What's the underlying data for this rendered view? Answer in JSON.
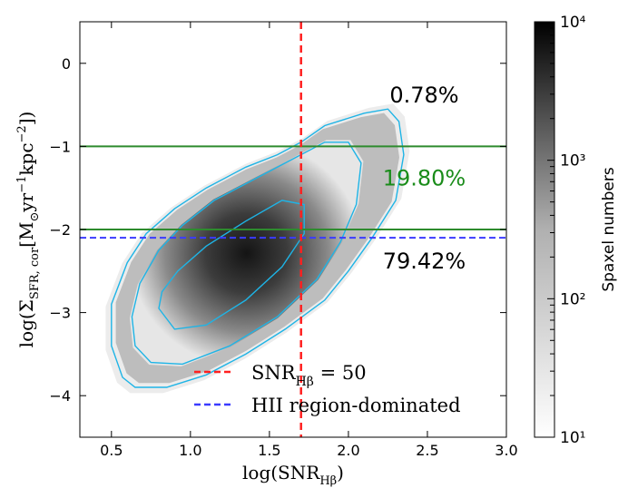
{
  "chart_data": {
    "type": "heatmap",
    "xlabel": "log(SNR_Hβ)",
    "ylabel": "log(Σ_SFR,cor [M⊙ yr⁻¹ kpc⁻²])",
    "xlim": [
      0.3,
      3.0
    ],
    "ylim": [
      -4.5,
      0.5
    ],
    "x_ticks": [
      0.5,
      1.0,
      1.5,
      2.0,
      2.5,
      3.0
    ],
    "y_ticks": [
      0,
      -1,
      -2,
      -3,
      -4
    ],
    "x_tick_labels": [
      "0.5",
      "1.0",
      "1.5",
      "2.0",
      "2.5",
      "3.0"
    ],
    "y_tick_labels": [
      "0",
      "−1",
      "−2",
      "−3",
      "−4"
    ],
    "colorbar": {
      "label": "Spaxel numbers",
      "scale": "log",
      "range": [
        10,
        10000
      ],
      "colormap": "Greys",
      "tick_labels": [
        "10¹",
        "10²",
        "10³",
        "10⁴"
      ]
    },
    "contour_color": "#1eb4e6",
    "contours": [
      {
        "level": "outer",
        "points": [
          [
            0.57,
            -3.78
          ],
          [
            0.65,
            -3.9
          ],
          [
            0.85,
            -3.9
          ],
          [
            1.1,
            -3.75
          ],
          [
            1.35,
            -3.5
          ],
          [
            1.6,
            -3.2
          ],
          [
            1.85,
            -2.85
          ],
          [
            2.0,
            -2.5
          ],
          [
            2.15,
            -2.1
          ],
          [
            2.3,
            -1.65
          ],
          [
            2.35,
            -1.1
          ],
          [
            2.32,
            -0.7
          ],
          [
            2.25,
            -0.55
          ],
          [
            2.1,
            -0.6
          ],
          [
            1.85,
            -0.75
          ],
          [
            1.7,
            -0.95
          ],
          [
            1.55,
            -1.1
          ],
          [
            1.35,
            -1.25
          ],
          [
            1.1,
            -1.5
          ],
          [
            0.9,
            -1.75
          ],
          [
            0.72,
            -2.05
          ],
          [
            0.6,
            -2.4
          ],
          [
            0.5,
            -2.9
          ],
          [
            0.5,
            -3.4
          ]
        ]
      },
      {
        "level": "middle",
        "points": [
          [
            0.65,
            -3.4
          ],
          [
            0.75,
            -3.6
          ],
          [
            0.95,
            -3.62
          ],
          [
            1.25,
            -3.4
          ],
          [
            1.55,
            -3.05
          ],
          [
            1.8,
            -2.6
          ],
          [
            1.95,
            -2.15
          ],
          [
            2.05,
            -1.7
          ],
          [
            2.08,
            -1.2
          ],
          [
            2.0,
            -0.95
          ],
          [
            1.85,
            -0.95
          ],
          [
            1.65,
            -1.15
          ],
          [
            1.4,
            -1.4
          ],
          [
            1.15,
            -1.65
          ],
          [
            0.95,
            -1.95
          ],
          [
            0.8,
            -2.25
          ],
          [
            0.68,
            -2.65
          ],
          [
            0.63,
            -3.05
          ]
        ]
      },
      {
        "level": "inner",
        "points": [
          [
            0.8,
            -2.95
          ],
          [
            0.9,
            -3.2
          ],
          [
            1.1,
            -3.15
          ],
          [
            1.35,
            -2.85
          ],
          [
            1.58,
            -2.45
          ],
          [
            1.72,
            -2.05
          ],
          [
            1.72,
            -1.7
          ],
          [
            1.58,
            -1.65
          ],
          [
            1.35,
            -1.9
          ],
          [
            1.1,
            -2.2
          ],
          [
            0.92,
            -2.5
          ],
          [
            0.82,
            -2.75
          ]
        ]
      }
    ],
    "hlines": [
      {
        "y": -1,
        "color": "#2e8b2e",
        "style": "solid"
      },
      {
        "y": -2,
        "color": "#2e8b2e",
        "style": "solid"
      },
      {
        "y": -2.1,
        "color": "#3b3bff",
        "style": "dashed"
      }
    ],
    "vlines": [
      {
        "x": 1.7,
        "color": "#ff2020",
        "style": "dashed"
      }
    ],
    "annotations": [
      {
        "text": "0.78%",
        "x": 2.48,
        "y": -0.47,
        "color": "#000000"
      },
      {
        "text": "19.80%",
        "x": 2.48,
        "y": -1.47,
        "color": "#1a8c1a"
      },
      {
        "text": "79.42%",
        "x": 2.48,
        "y": -2.47,
        "color": "#000000"
      }
    ],
    "legend": {
      "position": "bottom-center",
      "entries": [
        {
          "label": "SNR_Hβ = 50",
          "color": "#ff2020",
          "style": "dashed"
        },
        {
          "label": "HII region-dominated",
          "color": "#3b3bff",
          "style": "dashed"
        }
      ]
    }
  }
}
